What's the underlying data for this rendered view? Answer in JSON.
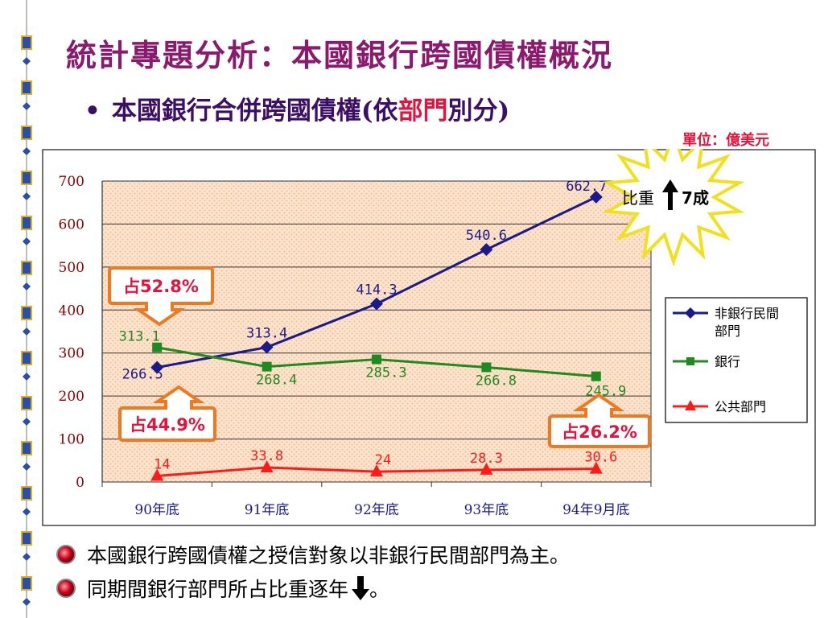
{
  "title": "統計專題分析：本國銀行跨國債權概況",
  "subtitle": {
    "bullet": "•",
    "prefix": "本國銀行合併跨國債權(依",
    "highlight": "部門",
    "suffix": "別分)"
  },
  "unit": "單位：億美元",
  "colors": {
    "title": "#8a1a6e",
    "subtitle": "#3b0f66",
    "accent_red": "#e0143c",
    "series_nonbank": "#1a1a8c",
    "series_bank": "#1f8a1f",
    "series_public": "#ff1a1a",
    "callout_border": "#f07820"
  },
  "chart_data": {
    "type": "line",
    "categories": [
      "90年底",
      "91年底",
      "92年底",
      "93年底",
      "94年9月底"
    ],
    "ylim": [
      0,
      700
    ],
    "yticks": [
      "0",
      "100",
      "200",
      "300",
      "400",
      "500",
      "600",
      "700"
    ],
    "grid": true,
    "legend_position": "right",
    "series": [
      {
        "name": "非銀行民間部門",
        "values": [
          266.5,
          313.4,
          414.3,
          540.6,
          662.7
        ],
        "labels": [
          "266.5",
          "313.4",
          "414.3",
          "540.6",
          "662.7"
        ],
        "marker": "diamond"
      },
      {
        "name": "銀行",
        "values": [
          313.1,
          268.4,
          285.3,
          266.8,
          245.9
        ],
        "labels": [
          "313.1",
          "268.4",
          "285.3",
          "266.8",
          "245.9"
        ],
        "marker": "square"
      },
      {
        "name": "公共部門",
        "values": [
          14,
          33.8,
          24,
          28.3,
          30.6
        ],
        "labels": [
          "14",
          "33.8",
          "24",
          "28.3",
          "30.6"
        ],
        "marker": "triangle"
      }
    ],
    "annotations": {
      "callout_bank_90": "占52.8%",
      "callout_nonbank_90": "占44.9%",
      "callout_bank_94": "占26.2%",
      "burst": {
        "prefix": "比重",
        "suffix": "7成"
      }
    }
  },
  "bullets": [
    {
      "text": "本國銀行跨國債權之授信對象以非銀行民間部門為主。"
    },
    {
      "text": "同期間銀行部門所占比重逐年",
      "after": "。"
    }
  ]
}
